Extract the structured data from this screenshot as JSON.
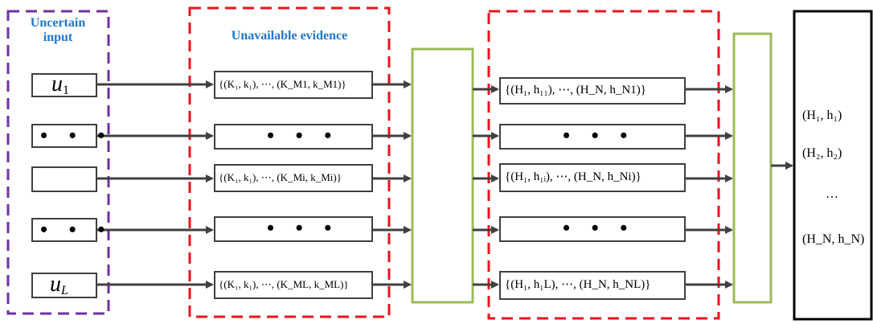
{
  "input_group": {
    "title_line1": "Uncertain",
    "title_line2": "input",
    "border_color": "#7030a0",
    "items": [
      {
        "main": "u",
        "sub": "1"
      },
      {
        "dots": "• • •"
      },
      {
        "main": "",
        "sub": ""
      },
      {
        "dots": "• • •"
      },
      {
        "main": "u",
        "sub": "L"
      }
    ]
  },
  "evidence_group": {
    "title": "Unavailable evidence",
    "border_color": "#e8141e",
    "items": [
      "{(K₁, k₁), ⋯, (K_M1, k_M1)}",
      "• • •",
      "{(K₁, k₁), ⋯, (K_Mi, k_Mi)}",
      "• • •",
      "{(K₁, k₁), ⋯, (K_ML, k_ML)}"
    ]
  },
  "belief_group": {
    "border_color": "#e8141e",
    "items": [
      "{(H₁, h₁₁), ⋯, (H_N, h_N1)}",
      "• • •",
      "{(H₁, h₁ᵢ), ⋯, (H_N, h_Ni)}",
      "• • •",
      "{(H₁, h₁L), ⋯, (H_N, h_NL)}"
    ]
  },
  "fusion_box_color": "#9bbb59",
  "output": {
    "items": [
      "(H₁, h₁)",
      "(H₂, h₂)",
      "…",
      "(H_N, h_N)"
    ]
  },
  "arrow_color": "#404040"
}
